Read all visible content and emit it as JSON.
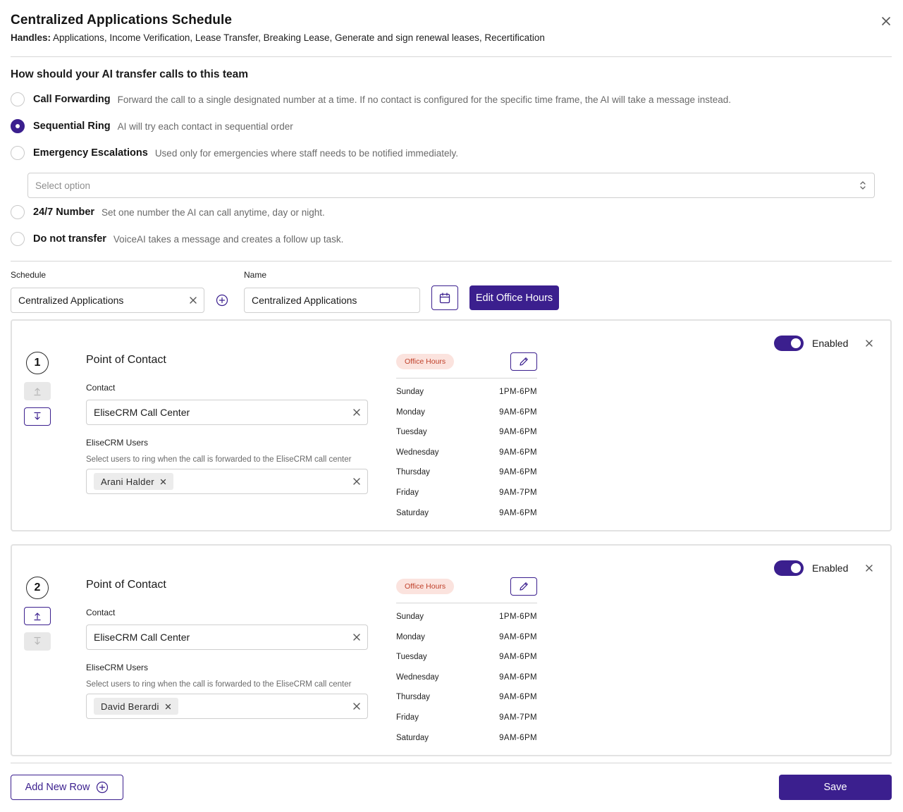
{
  "modal": {
    "title": "Centralized Applications Schedule",
    "handles_label": "Handles:",
    "handles_value": " Applications, Income Verification, Lease Transfer, Breaking Lease, Generate and sign renewal leases, Recertification"
  },
  "transfer": {
    "heading": "How should your AI transfer calls to this team",
    "options": [
      {
        "label": "Call Forwarding",
        "desc": "Forward the call to a single designated number at a time. If no contact is configured for the specific time frame, the AI will take a message instead.",
        "checked": false
      },
      {
        "label": "Sequential Ring",
        "desc": "AI will try each contact in sequential order",
        "checked": true
      },
      {
        "label": "Emergency Escalations",
        "desc": "Used only for emergencies where staff needs to be notified immediately.",
        "checked": false
      },
      {
        "label": "24/7 Number",
        "desc": "Set one number the AI can call anytime, day or night.",
        "checked": false
      },
      {
        "label": "Do not transfer",
        "desc": "VoiceAI takes a message and creates a follow up task.",
        "checked": false
      }
    ],
    "select_placeholder": "Select option"
  },
  "schedule": {
    "schedule_label": "Schedule",
    "schedule_value": "Centralized Applications",
    "name_label": "Name",
    "name_value": "Centralized Applications",
    "edit_office_hours": "Edit Office Hours"
  },
  "contacts": [
    {
      "number": "1",
      "title": "Point of Contact",
      "contact_label": "Contact",
      "contact_value": "EliseCRM Call Center",
      "users_label": "EliseCRM Users",
      "users_helper": "Select users to ring when the call is forwarded to the EliseCRM call center",
      "user_chip": "Arani Halder",
      "badge": "Office Hours",
      "enabled_label": "Enabled",
      "enabled": true,
      "up_enabled": false,
      "down_enabled": true,
      "hours": [
        {
          "day": "Sunday",
          "time": "1PM-6PM"
        },
        {
          "day": "Monday",
          "time": "9AM-6PM"
        },
        {
          "day": "Tuesday",
          "time": "9AM-6PM"
        },
        {
          "day": "Wednesday",
          "time": "9AM-6PM"
        },
        {
          "day": "Thursday",
          "time": "9AM-6PM"
        },
        {
          "day": "Friday",
          "time": "9AM-7PM"
        },
        {
          "day": "Saturday",
          "time": "9AM-6PM"
        }
      ]
    },
    {
      "number": "2",
      "title": "Point of Contact",
      "contact_label": "Contact",
      "contact_value": "EliseCRM Call Center",
      "users_label": "EliseCRM Users",
      "users_helper": "Select users to ring when the call is forwarded to the EliseCRM call center",
      "user_chip": "David Berardi",
      "badge": "Office Hours",
      "enabled_label": "Enabled",
      "enabled": true,
      "up_enabled": true,
      "down_enabled": false,
      "hours": [
        {
          "day": "Sunday",
          "time": "1PM-6PM"
        },
        {
          "day": "Monday",
          "time": "9AM-6PM"
        },
        {
          "day": "Tuesday",
          "time": "9AM-6PM"
        },
        {
          "day": "Wednesday",
          "time": "9AM-6PM"
        },
        {
          "day": "Thursday",
          "time": "9AM-6PM"
        },
        {
          "day": "Friday",
          "time": "9AM-7PM"
        },
        {
          "day": "Saturday",
          "time": "9AM-6PM"
        }
      ]
    }
  ],
  "footer": {
    "add_row": "Add New Row",
    "save": "Save"
  },
  "colors": {
    "primary": "#3b1f8e",
    "badge_bg": "#fbe3de",
    "badge_text": "#c0412b"
  }
}
